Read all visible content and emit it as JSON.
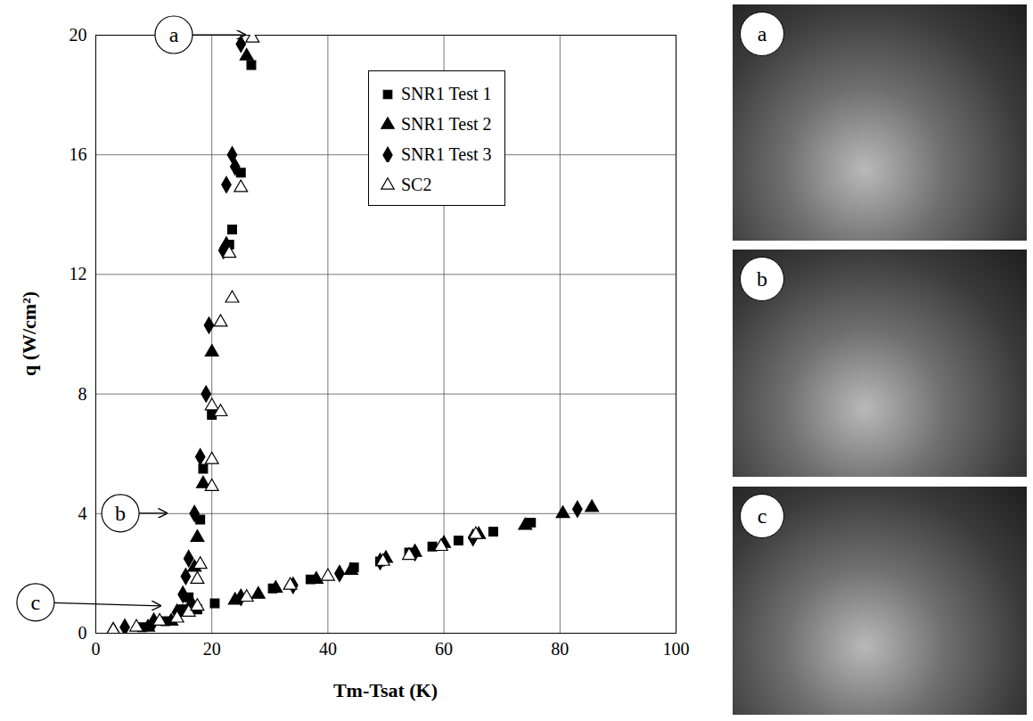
{
  "chart_data": {
    "type": "scatter",
    "x_label": "Tm-Tsat (K)",
    "y_label": "q (W/cm²)",
    "xlim": [
      0,
      100
    ],
    "xticks": [
      0,
      20,
      40,
      60,
      80,
      100
    ],
    "ylim": [
      0,
      20
    ],
    "yticks": [
      0,
      4,
      8,
      12,
      16,
      20
    ],
    "grid": true,
    "legend": "top-right",
    "series": [
      {
        "name": "SNR1 Test 1",
        "color": "#000000",
        "marker": "square",
        "x": [
          8,
          12,
          15,
          16,
          17.5,
          18,
          18.5,
          20,
          23,
          23.5,
          25,
          26.8,
          20.5,
          30.5,
          37,
          44.5,
          49,
          54,
          58,
          62.5,
          68.5,
          75
        ],
        "values": [
          0.2,
          0.4,
          0.8,
          1.2,
          0.8,
          3.8,
          5.5,
          7.3,
          13,
          13.5,
          15.4,
          19,
          1.0,
          1.5,
          1.8,
          2.2,
          2.4,
          2.7,
          2.9,
          3.1,
          3.4,
          3.7
        ]
      },
      {
        "name": "SNR1 Test 2",
        "color": "#000000",
        "marker": "triangle",
        "x": [
          3,
          9,
          13,
          15,
          16.5,
          17,
          17.5,
          18.5,
          20,
          22.5,
          26,
          24,
          28,
          31,
          38,
          44,
          50,
          55,
          60,
          66,
          74,
          80.5,
          85.5
        ],
        "values": [
          0.1,
          0.2,
          0.4,
          0.7,
          1.0,
          2.2,
          3.2,
          5.0,
          9.4,
          13,
          19.3,
          1.1,
          1.3,
          1.5,
          1.8,
          2.1,
          2.5,
          2.7,
          3.0,
          3.3,
          3.6,
          4.0,
          4.2
        ]
      },
      {
        "name": "SNR1 Test 3",
        "color": "#000000",
        "marker": "diamond",
        "x": [
          5,
          10,
          14,
          15,
          15.5,
          16,
          17,
          18,
          19,
          19.5,
          22,
          22.5,
          23.5,
          24,
          25,
          25,
          34,
          42,
          49,
          55,
          65,
          83
        ],
        "values": [
          0.2,
          0.4,
          0.7,
          1.3,
          1.9,
          2.5,
          4.0,
          5.9,
          8.0,
          10.3,
          12.8,
          15,
          16,
          15.6,
          19.7,
          1.2,
          1.6,
          2.0,
          2.4,
          2.7,
          3.2,
          4.15
        ]
      },
      {
        "name": "SC2",
        "color": "#000000",
        "marker": "open-triangle",
        "x": [
          3,
          7,
          11,
          14,
          16,
          17.5,
          17.5,
          18,
          20,
          20,
          20,
          21.5,
          21.5,
          23.5,
          23,
          25,
          27,
          26,
          33.5,
          40,
          49.5,
          54,
          59.5,
          65.5
        ],
        "values": [
          0.1,
          0.2,
          0.4,
          0.5,
          0.7,
          0.9,
          1.8,
          2.3,
          4.9,
          5.8,
          7.6,
          7.4,
          10.4,
          11.2,
          12.7,
          14.9,
          19.9,
          1.2,
          1.6,
          1.9,
          2.4,
          2.6,
          2.9,
          3.3
        ]
      }
    ],
    "annotations": [
      {
        "text": "a",
        "x": 25.8,
        "y": 20
      },
      {
        "text": "b",
        "x": 12.3,
        "y": 4
      },
      {
        "text": "c",
        "x": 11.2,
        "y": 0.9
      }
    ],
    "photo_labels": [
      "a",
      "b",
      "c"
    ]
  }
}
